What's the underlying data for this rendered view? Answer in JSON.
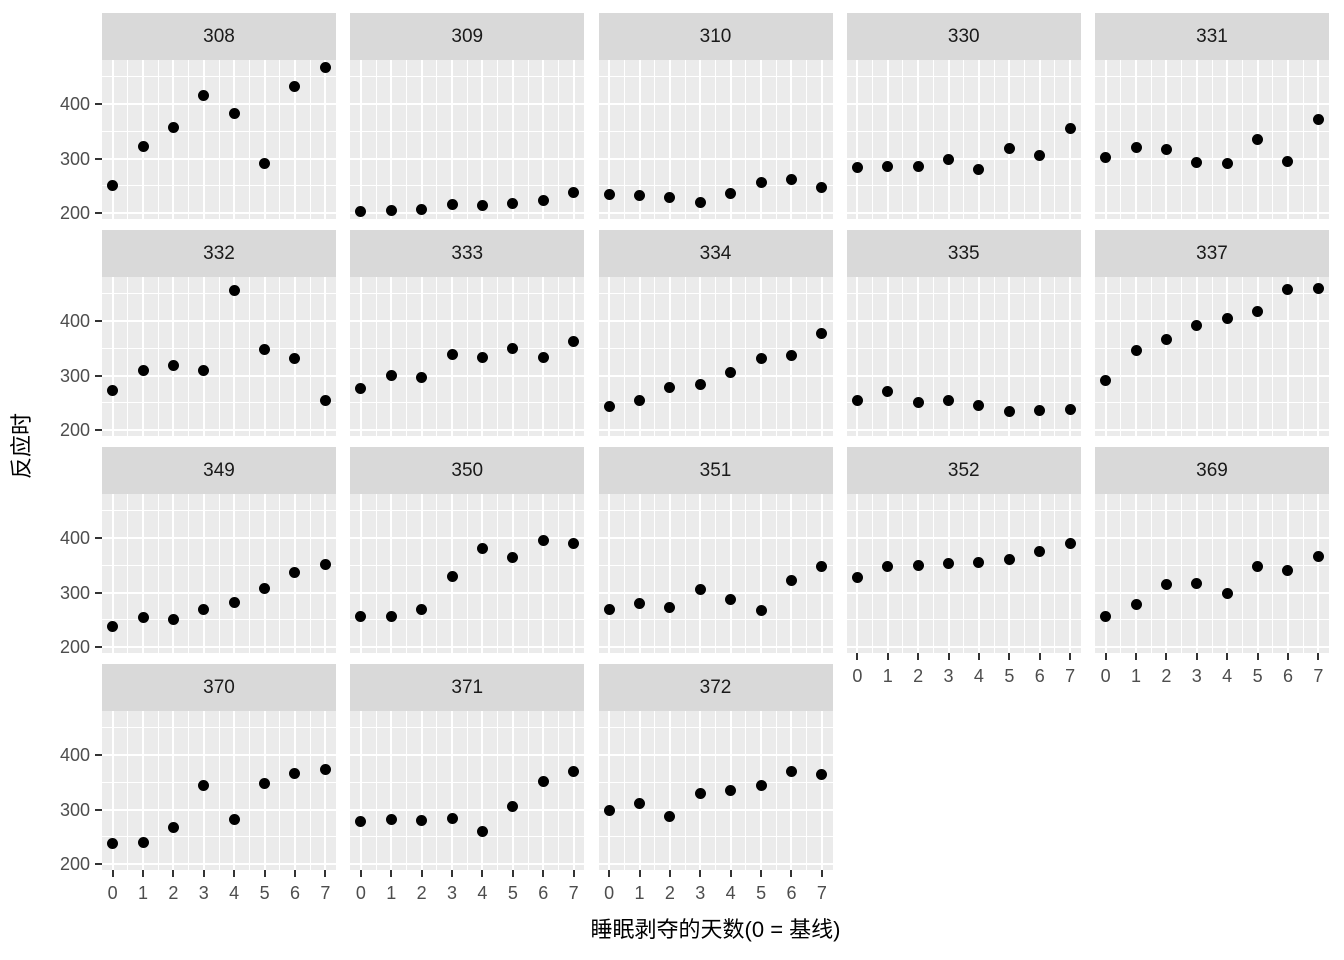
{
  "chart_data": {
    "type": "scatter",
    "title": "",
    "xlabel": "睡眠剥夺的天数(0 = 基线)",
    "ylabel": "反应时",
    "x": [
      0,
      1,
      2,
      3,
      4,
      5,
      6,
      7
    ],
    "x_tick_labels": [
      "0",
      "1",
      "2",
      "3",
      "4",
      "5",
      "6",
      "7"
    ],
    "y_tick_labels": [
      "200",
      "300",
      "400"
    ],
    "y_ticks": [
      200,
      300,
      400
    ],
    "y_minor_ticks": [
      250,
      350,
      450
    ],
    "x_minor_ticks": [
      0.5,
      1.5,
      2.5,
      3.5,
      4.5,
      5.5,
      6.5
    ],
    "xlim": [
      -0.35,
      7.35
    ],
    "ylim": [
      189.8,
      479.5
    ],
    "grid": "major and minor white gridlines on grey panel",
    "legend_position": "none",
    "facet_columns": 5,
    "facets": [
      {
        "label": "308",
        "values": [
          250.8,
          321.4,
          356.9,
          414.7,
          382.2,
          290.1,
          430.6,
          466.4
        ]
      },
      {
        "label": "309",
        "values": [
          203.0,
          204.7,
          207.7,
          216.0,
          213.6,
          217.7,
          224.3,
          237.3
        ]
      },
      {
        "label": "310",
        "values": [
          234.3,
          232.8,
          229.3,
          220.5,
          235.4,
          255.8,
          261.0,
          247.5
        ]
      },
      {
        "label": "330",
        "values": [
          283.9,
          285.1,
          285.8,
          297.6,
          280.2,
          318.3,
          305.3,
          354.0
        ]
      },
      {
        "label": "331",
        "values": [
          301.8,
          320.1,
          316.3,
          293.3,
          290.1,
          334.8,
          293.7,
          371.6
        ]
      },
      {
        "label": "332",
        "values": [
          273.0,
          309.8,
          317.5,
          310.0,
          454.2,
          346.8,
          330.3,
          253.9
        ]
      },
      {
        "label": "333",
        "values": [
          276.8,
          299.8,
          297.2,
          338.2,
          332.0,
          348.8,
          333.4,
          362.0
        ]
      },
      {
        "label": "334",
        "values": [
          243.4,
          254.7,
          279.0,
          284.2,
          305.5,
          331.5,
          335.7,
          377.3
        ]
      },
      {
        "label": "335",
        "values": [
          254.5,
          270.8,
          251.5,
          254.6,
          245.5,
          235.3,
          235.8,
          237.2
        ]
      },
      {
        "label": "337",
        "values": [
          291.6,
          346.1,
          365.7,
          391.8,
          404.3,
          416.7,
          455.9,
          458.9
        ]
      },
      {
        "label": "349",
        "values": [
          238.9,
          254.9,
          250.7,
          269.8,
          281.6,
          308.1,
          336.3,
          351.6
        ]
      },
      {
        "label": "350",
        "values": [
          256.2,
          255.5,
          268.9,
          329.7,
          379.4,
          362.9,
          394.5,
          389.1
        ]
      },
      {
        "label": "351",
        "values": [
          269.9,
          280.6,
          271.8,
          304.6,
          287.7,
          266.6,
          321.5,
          347.6
        ]
      },
      {
        "label": "352",
        "values": [
          326.9,
          346.9,
          348.7,
          352.8,
          354.4,
          360.4,
          375.6,
          388.5
        ]
      },
      {
        "label": "369",
        "values": [
          257.2,
          277.7,
          314.8,
          317.3,
          298.1,
          348.1,
          340.3,
          366.5
        ]
      },
      {
        "label": "370",
        "values": [
          238.9,
          240.5,
          267.5,
          344.2,
          281.1,
          347.6,
          365.2,
          372.2
        ]
      },
      {
        "label": "371",
        "values": [
          277.9,
          281.8,
          279.2,
          284.5,
          259.3,
          304.6,
          350.8,
          369.5
        ]
      },
      {
        "label": "372",
        "values": [
          297.6,
          310.6,
          287.2,
          329.6,
          334.5,
          343.2,
          369.1,
          364.1
        ]
      }
    ]
  },
  "colors": {
    "panel_bg": "#EBEBEB",
    "strip_bg": "#D9D9D9",
    "gridline": "#FFFFFF",
    "point": "#000000",
    "axis_text": "#4D4D4D",
    "strip_text": "#1A1A1A",
    "axis_title": "#000000",
    "tick_mark": "#333333"
  }
}
